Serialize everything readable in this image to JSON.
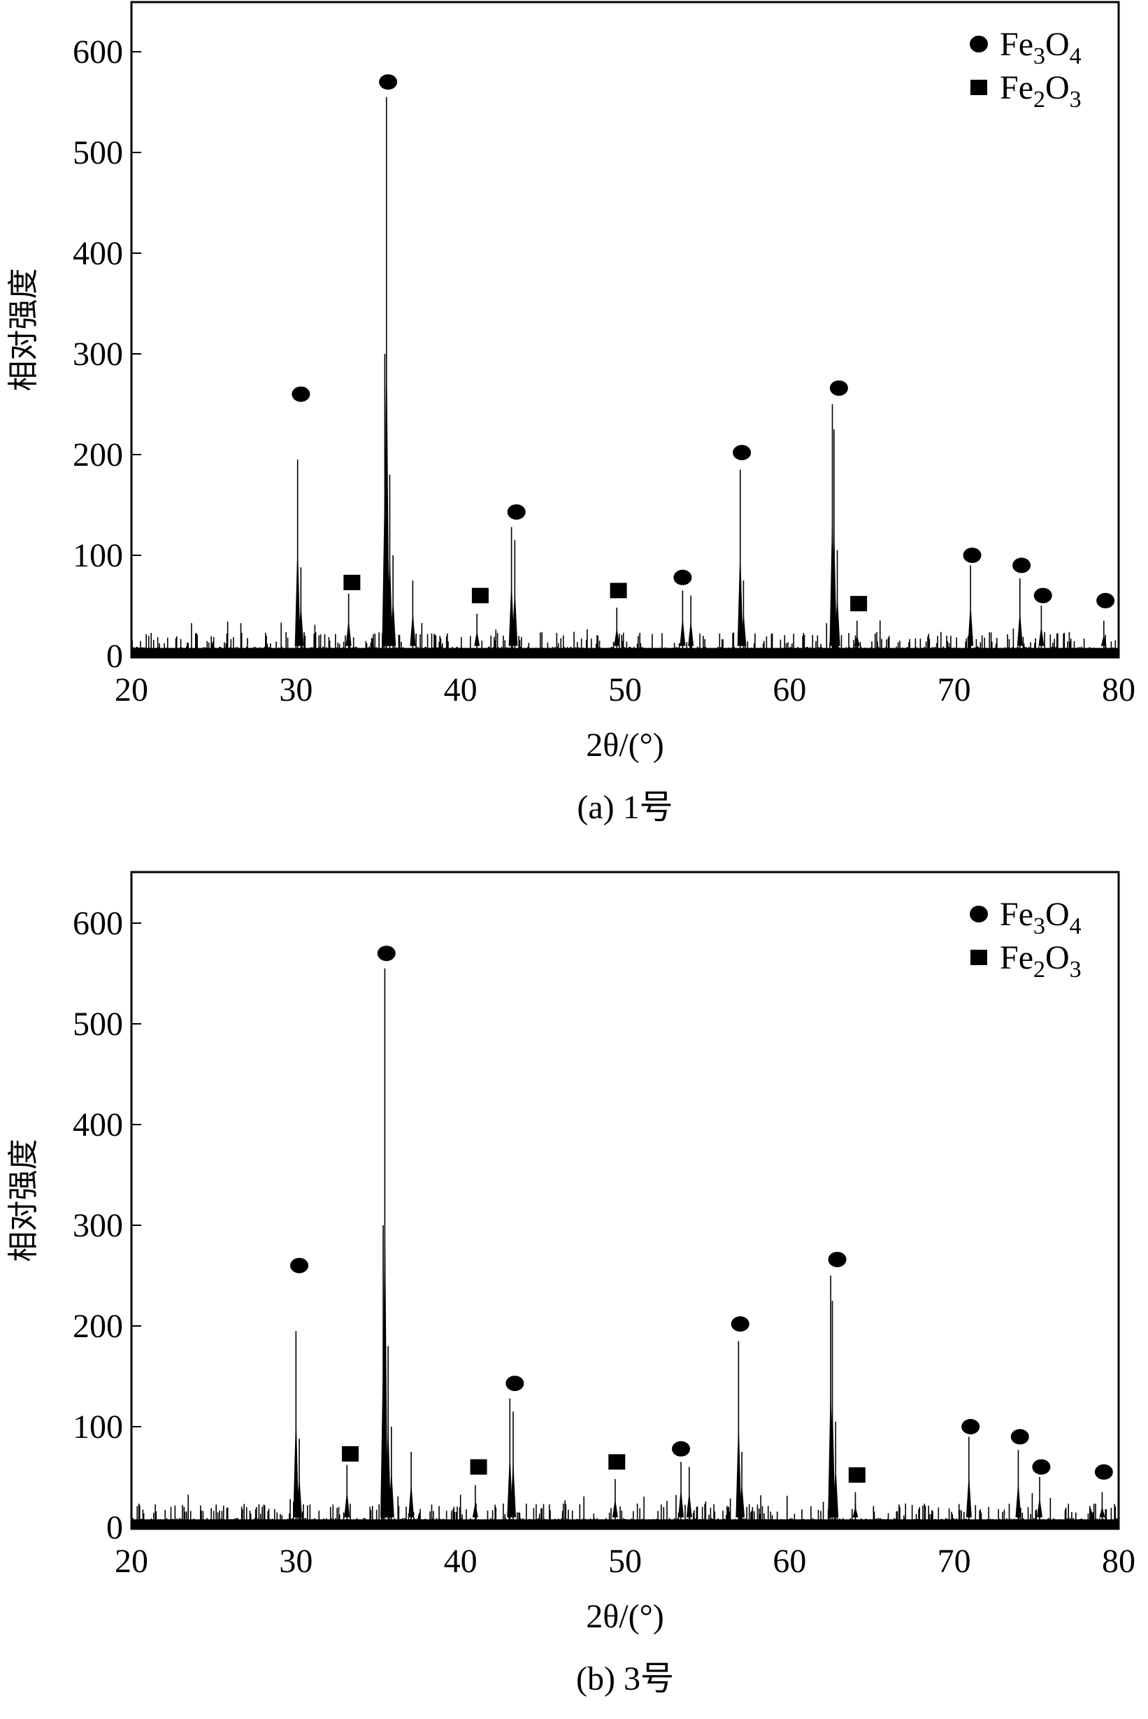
{
  "chart_data": [
    {
      "type": "line",
      "caption": "(a) 1号",
      "xlabel": "2θ/(°)",
      "ylabel": "相对强度",
      "xlim": [
        20,
        80
      ],
      "ylim": [
        0,
        650
      ],
      "xticks": [
        20,
        30,
        40,
        50,
        60,
        70,
        80
      ],
      "yticks": [
        0,
        100,
        200,
        300,
        400,
        500,
        600
      ],
      "grid": false,
      "legend_position": "top-right",
      "legend": [
        {
          "marker": "circle",
          "label": "Fe3O4",
          "base": "Fe",
          "sub1": "3",
          "mid": "O",
          "sub2": "4"
        },
        {
          "marker": "square",
          "label": "Fe2O3",
          "base": "Fe",
          "sub1": "2",
          "mid": "O",
          "sub2": "3"
        }
      ],
      "peaks": [
        [
          30.1,
          195
        ],
        [
          30.3,
          88
        ],
        [
          33.2,
          62
        ],
        [
          35.4,
          300
        ],
        [
          35.5,
          555
        ],
        [
          35.7,
          180
        ],
        [
          35.9,
          100
        ],
        [
          37.1,
          75
        ],
        [
          41.0,
          42
        ],
        [
          43.1,
          128
        ],
        [
          43.3,
          115
        ],
        [
          49.5,
          48
        ],
        [
          53.5,
          65
        ],
        [
          54.0,
          60
        ],
        [
          57.0,
          185
        ],
        [
          57.2,
          75
        ],
        [
          62.6,
          250
        ],
        [
          62.7,
          225
        ],
        [
          62.9,
          105
        ],
        [
          64.1,
          35
        ],
        [
          71.0,
          90
        ],
        [
          74.0,
          77
        ],
        [
          75.3,
          50
        ],
        [
          79.1,
          35
        ]
      ],
      "markers": {
        "Fe3O4": [
          [
            30.3,
            260
          ],
          [
            35.6,
            570
          ],
          [
            43.4,
            143
          ],
          [
            53.5,
            78
          ],
          [
            57.1,
            202
          ],
          [
            63.0,
            266
          ],
          [
            71.1,
            100
          ],
          [
            74.1,
            90
          ],
          [
            75.4,
            60
          ],
          [
            79.2,
            55
          ]
        ],
        "Fe2O3": [
          [
            33.4,
            73
          ],
          [
            41.2,
            60
          ],
          [
            49.6,
            65
          ],
          [
            64.2,
            52
          ]
        ]
      }
    },
    {
      "type": "line",
      "caption": "(b) 3号",
      "xlabel": "2θ/(°)",
      "ylabel": "相对强度",
      "xlim": [
        20,
        80
      ],
      "ylim": [
        0,
        650
      ],
      "xticks": [
        20,
        30,
        40,
        50,
        60,
        70,
        80
      ],
      "yticks": [
        0,
        100,
        200,
        300,
        400,
        500,
        600
      ],
      "grid": false,
      "legend_position": "top-right",
      "legend": [
        {
          "marker": "circle",
          "label": "Fe3O4",
          "base": "Fe",
          "sub1": "3",
          "mid": "O",
          "sub2": "4"
        },
        {
          "marker": "square",
          "label": "Fe2O3",
          "base": "Fe",
          "sub1": "2",
          "mid": "O",
          "sub2": "3"
        }
      ],
      "peaks": [
        [
          30.0,
          195
        ],
        [
          30.2,
          88
        ],
        [
          33.1,
          62
        ],
        [
          35.3,
          300
        ],
        [
          35.4,
          555
        ],
        [
          35.6,
          180
        ],
        [
          35.8,
          100
        ],
        [
          37.0,
          75
        ],
        [
          40.9,
          42
        ],
        [
          43.0,
          128
        ],
        [
          43.2,
          115
        ],
        [
          49.4,
          48
        ],
        [
          53.4,
          65
        ],
        [
          53.9,
          60
        ],
        [
          56.9,
          185
        ],
        [
          57.1,
          75
        ],
        [
          62.5,
          250
        ],
        [
          62.6,
          225
        ],
        [
          62.8,
          105
        ],
        [
          64.0,
          35
        ],
        [
          70.9,
          90
        ],
        [
          73.9,
          77
        ],
        [
          75.2,
          50
        ],
        [
          79.0,
          35
        ]
      ],
      "markers": {
        "Fe3O4": [
          [
            30.2,
            260
          ],
          [
            35.5,
            570
          ],
          [
            43.3,
            143
          ],
          [
            53.4,
            78
          ],
          [
            57.0,
            202
          ],
          [
            62.9,
            266
          ],
          [
            71.0,
            100
          ],
          [
            74.0,
            90
          ],
          [
            75.3,
            60
          ],
          [
            79.1,
            55
          ]
        ],
        "Fe2O3": [
          [
            33.3,
            73
          ],
          [
            41.1,
            60
          ],
          [
            49.5,
            65
          ],
          [
            64.1,
            52
          ]
        ]
      }
    }
  ]
}
